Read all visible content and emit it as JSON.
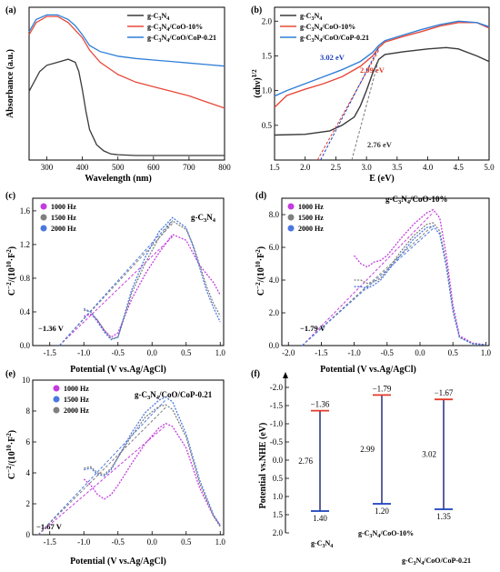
{
  "chart_data": [
    {
      "id": "a",
      "panel_label": "(a)",
      "type": "line",
      "xlabel": "Wavelength (nm)",
      "ylabel": "Absorbance (a.u.)",
      "xlim": [
        250,
        800
      ],
      "ylim": [
        0,
        1.0
      ],
      "xticks": [
        "300",
        "400",
        "500",
        "600",
        "700",
        "800"
      ],
      "legend_position": "top-right",
      "series": [
        {
          "name": "g-C3N4",
          "color": "#3a3a3a",
          "x": [
            250,
            280,
            300,
            330,
            360,
            380,
            390,
            400,
            410,
            420,
            440,
            460,
            480,
            500,
            550,
            600,
            650,
            700,
            750,
            800
          ],
          "y": [
            0.45,
            0.58,
            0.62,
            0.64,
            0.66,
            0.64,
            0.58,
            0.46,
            0.32,
            0.2,
            0.1,
            0.06,
            0.04,
            0.035,
            0.03,
            0.03,
            0.03,
            0.03,
            0.03,
            0.03
          ]
        },
        {
          "name": "g-C3N4/CoO-10%",
          "color": "#e8483a",
          "x": [
            250,
            270,
            300,
            330,
            360,
            380,
            400,
            420,
            450,
            500,
            550,
            600,
            650,
            700,
            750,
            800
          ],
          "y": [
            0.82,
            0.9,
            0.94,
            0.94,
            0.9,
            0.85,
            0.8,
            0.72,
            0.64,
            0.56,
            0.51,
            0.48,
            0.45,
            0.42,
            0.38,
            0.34
          ]
        },
        {
          "name": "g-C3N4/CoO/CoP-0.21",
          "color": "#2f7fd8",
          "x": [
            250,
            270,
            300,
            330,
            360,
            380,
            400,
            420,
            450,
            500,
            550,
            600,
            650,
            700,
            750,
            800
          ],
          "y": [
            0.84,
            0.92,
            0.95,
            0.95,
            0.92,
            0.88,
            0.82,
            0.75,
            0.71,
            0.68,
            0.665,
            0.655,
            0.645,
            0.635,
            0.625,
            0.615
          ]
        }
      ]
    },
    {
      "id": "b",
      "panel_label": "(b)",
      "type": "line",
      "xlabel": "E (eV)",
      "ylabel": "(αhν)^1/2",
      "xlim": [
        1.5,
        5.0
      ],
      "ylim": [
        0,
        2.2
      ],
      "xticks": [
        "1.5",
        "2.0",
        "2.5",
        "3.0",
        "3.5",
        "4.0",
        "4.5",
        "5.0"
      ],
      "yticks": [
        "0.5",
        "1.0",
        "1.5",
        "2.0"
      ],
      "legend_position": "top-left",
      "annotations": [
        {
          "text": "3.02 eV",
          "color": "#1a3fbf"
        },
        {
          "text": "2.99 eV",
          "color": "#e33a2a"
        },
        {
          "text": "2.76 eV",
          "color": "#333333"
        }
      ],
      "series": [
        {
          "name": "g-C3N4",
          "color": "#3a3a3a",
          "x": [
            1.5,
            2.0,
            2.4,
            2.6,
            2.8,
            2.9,
            3.0,
            3.1,
            3.2,
            3.3,
            3.6,
            4.0,
            4.3,
            4.5,
            4.8,
            5.0
          ],
          "y": [
            0.36,
            0.37,
            0.42,
            0.5,
            0.62,
            0.78,
            1.0,
            1.25,
            1.45,
            1.52,
            1.56,
            1.6,
            1.62,
            1.6,
            1.5,
            1.42
          ]
        },
        {
          "name": "g-C3N4/CoO-10%",
          "color": "#e8483a",
          "x": [
            1.5,
            1.7,
            2.0,
            2.3,
            2.6,
            2.9,
            3.1,
            3.2,
            3.3,
            3.6,
            3.9,
            4.2,
            4.5,
            4.8,
            5.0
          ],
          "y": [
            0.76,
            0.93,
            1.02,
            1.1,
            1.2,
            1.35,
            1.5,
            1.62,
            1.7,
            1.78,
            1.85,
            1.93,
            1.98,
            1.98,
            1.9
          ]
        },
        {
          "name": "g-C3N4/CoO/CoP-0.21",
          "color": "#2f7fd8",
          "x": [
            1.5,
            1.7,
            2.0,
            2.3,
            2.6,
            2.9,
            3.1,
            3.2,
            3.3,
            3.6,
            3.9,
            4.2,
            4.5,
            4.8,
            5.0
          ],
          "y": [
            0.92,
            1.0,
            1.1,
            1.2,
            1.3,
            1.42,
            1.55,
            1.65,
            1.72,
            1.8,
            1.88,
            1.95,
            2.0,
            1.98,
            1.92
          ]
        }
      ]
    },
    {
      "id": "c",
      "panel_label": "(c)",
      "type": "line",
      "title": "g-C3N4",
      "xlabel": "Potential (V vs.Ag/AgCl)",
      "ylabel": "C^-2/(10^10 F^2)",
      "xlim": [
        -1.75,
        1.05
      ],
      "ylim": [
        0,
        1.75
      ],
      "xticks": [
        "-1.5",
        "-1.0",
        "-0.5",
        "0.0",
        "0.5",
        "1.0"
      ],
      "yticks": [
        "0.0",
        "0.4",
        "0.8",
        "1.2",
        "1.6"
      ],
      "legend_position": "top-left",
      "flatband_label": "−1.36 V",
      "series": [
        {
          "name": "1000 Hz",
          "color": "#c43be0",
          "x": [
            -1.0,
            -0.9,
            -0.8,
            -0.7,
            -0.6,
            -0.5,
            -0.4,
            -0.3,
            -0.1,
            0.1,
            0.3,
            0.5,
            0.6,
            0.7,
            0.8,
            0.9,
            1.0
          ],
          "y": [
            0.35,
            0.37,
            0.3,
            0.18,
            0.1,
            0.15,
            0.35,
            0.55,
            0.85,
            1.1,
            1.32,
            1.25,
            1.1,
            0.95,
            0.85,
            0.75,
            0.6
          ]
        },
        {
          "name": "1500 Hz",
          "color": "#7f7f7f",
          "x": [
            -1.0,
            -0.9,
            -0.8,
            -0.7,
            -0.6,
            -0.5,
            -0.4,
            -0.3,
            -0.1,
            0.1,
            0.3,
            0.5,
            0.6,
            0.7,
            0.8,
            0.9,
            1.0
          ],
          "y": [
            0.42,
            0.4,
            0.3,
            0.18,
            0.08,
            0.1,
            0.35,
            0.62,
            0.98,
            1.28,
            1.48,
            1.38,
            1.2,
            0.95,
            0.7,
            0.5,
            0.35
          ]
        },
        {
          "name": "2000 Hz",
          "color": "#4a78e0",
          "x": [
            -1.0,
            -0.9,
            -0.8,
            -0.7,
            -0.6,
            -0.5,
            -0.4,
            -0.3,
            -0.1,
            0.1,
            0.3,
            0.5,
            0.6,
            0.7,
            0.8,
            0.9,
            1.0
          ],
          "y": [
            0.44,
            0.4,
            0.28,
            0.16,
            0.07,
            0.1,
            0.38,
            0.66,
            1.05,
            1.35,
            1.52,
            1.4,
            1.18,
            0.92,
            0.65,
            0.45,
            0.28
          ]
        }
      ]
    },
    {
      "id": "d",
      "panel_label": "(d)",
      "type": "line",
      "title": "g-C3N4/CoO-10%",
      "xlabel": "Potential (V vs.Ag/AgCl)",
      "ylabel": "C^-2/(10^10 F^2)",
      "xlim": [
        -2.1,
        1.05
      ],
      "ylim": [
        0,
        9
      ],
      "xticks": [
        "-2.0",
        "-1.5",
        "-1.0",
        "-0.5",
        "0.0",
        "0.5",
        "1.0"
      ],
      "yticks": [
        "0.0",
        "2.0",
        "4.0",
        "6.0",
        "8.0"
      ],
      "legend_position": "top-left",
      "flatband_label": "−1.79 V",
      "series": [
        {
          "name": "1000 Hz",
          "color": "#c43be0",
          "x": [
            -1.0,
            -0.9,
            -0.8,
            -0.7,
            -0.6,
            -0.5,
            -0.3,
            -0.1,
            0.1,
            0.2,
            0.3,
            0.4,
            0.5,
            0.6,
            0.8,
            1.0
          ],
          "y": [
            5.5,
            5.0,
            4.8,
            5.1,
            5.2,
            5.5,
            6.5,
            7.4,
            8.1,
            8.3,
            7.8,
            5.5,
            2.5,
            0.6,
            0.15,
            0.05
          ]
        },
        {
          "name": "1500 Hz",
          "color": "#7f7f7f",
          "x": [
            -1.0,
            -0.9,
            -0.8,
            -0.7,
            -0.6,
            -0.5,
            -0.3,
            -0.1,
            0.1,
            0.2,
            0.3,
            0.4,
            0.5,
            0.6,
            0.8,
            1.0
          ],
          "y": [
            4.0,
            4.0,
            3.8,
            3.9,
            4.1,
            4.6,
            5.7,
            6.7,
            7.4,
            7.5,
            7.0,
            5.0,
            2.2,
            0.5,
            0.12,
            0.05
          ]
        },
        {
          "name": "2000 Hz",
          "color": "#4a78e0",
          "x": [
            -1.0,
            -0.9,
            -0.8,
            -0.7,
            -0.6,
            -0.5,
            -0.3,
            -0.1,
            0.1,
            0.2,
            0.3,
            0.4,
            0.5,
            0.6,
            0.8,
            1.0
          ],
          "y": [
            3.6,
            3.6,
            3.5,
            3.7,
            4.0,
            4.5,
            5.5,
            6.5,
            7.2,
            7.3,
            6.8,
            4.8,
            2.1,
            0.5,
            0.1,
            0.05
          ]
        }
      ]
    },
    {
      "id": "e",
      "panel_label": "(e)",
      "type": "line",
      "title": "g-C3N4/CoO/CoP-0.21",
      "xlabel": "Potential (V vs.Ag/AgCl)",
      "ylabel": "C^-2/(10^10 F^2)",
      "xlim": [
        -1.75,
        1.05
      ],
      "ylim": [
        0,
        10
      ],
      "xticks": [
        "-1.5",
        "-1.0",
        "-0.5",
        "0.0",
        "0.5",
        "1.0"
      ],
      "yticks": [
        "0",
        "2",
        "4",
        "6",
        "8",
        "10"
      ],
      "legend_position": "top-left",
      "flatband_label": "−1.67 V",
      "series": [
        {
          "name": "1000 Hz",
          "color": "#c43be0",
          "x": [
            -1.0,
            -0.9,
            -0.8,
            -0.7,
            -0.6,
            -0.5,
            -0.3,
            -0.1,
            0.1,
            0.2,
            0.3,
            0.5,
            0.7,
            0.9,
            1.0
          ],
          "y": [
            3.6,
            3.2,
            2.6,
            2.3,
            2.6,
            3.2,
            4.6,
            5.9,
            6.9,
            7.2,
            7.0,
            5.6,
            3.0,
            1.2,
            0.6
          ]
        },
        {
          "name": "1500 Hz",
          "color": "#4a78e0",
          "x": [
            -1.0,
            -0.9,
            -0.8,
            -0.7,
            -0.6,
            -0.5,
            -0.3,
            -0.1,
            0.1,
            0.2,
            0.3,
            0.5,
            0.7,
            0.9,
            1.0
          ],
          "y": [
            4.2,
            4.3,
            3.9,
            3.8,
            4.2,
            5.0,
            6.6,
            7.9,
            8.7,
            8.9,
            8.6,
            6.5,
            3.5,
            1.3,
            0.6
          ]
        },
        {
          "name": "2000 Hz",
          "color": "#7f7f7f",
          "x": [
            -1.0,
            -0.9,
            -0.8,
            -0.7,
            -0.6,
            -0.5,
            -0.3,
            -0.1,
            0.1,
            0.2,
            0.3,
            0.5,
            0.7,
            0.9,
            1.0
          ],
          "y": [
            4.3,
            4.4,
            4.0,
            3.9,
            4.3,
            5.0,
            6.4,
            7.6,
            8.3,
            8.4,
            8.1,
            6.3,
            3.3,
            1.2,
            0.5
          ]
        }
      ]
    },
    {
      "id": "f",
      "panel_label": "(f)",
      "type": "bar",
      "ylabel": "Potential vs.NHE (eV)",
      "ylim": [
        -2.2,
        2.0
      ],
      "yticks": [
        "-2.0",
        "-1.5",
        "-1.0",
        "-0.5",
        "0.0",
        "0.5",
        "1.0",
        "1.5",
        "2.0"
      ],
      "categories": [
        "g-C3N4",
        "g-C3N4/CoO-10%",
        "g-C3N4/CoO/CoP-0.21"
      ],
      "cb_values": [
        -1.36,
        -1.79,
        -1.67
      ],
      "vb_values": [
        1.4,
        1.2,
        1.35
      ],
      "gap_values": [
        2.76,
        2.99,
        3.02
      ],
      "cb_labels": [
        "−1.36",
        "−1.79",
        "−1.67"
      ],
      "vb_labels": [
        "1.40",
        "1.20",
        "1.35"
      ],
      "gap_labels": [
        "2.76",
        "2.99",
        "3.02"
      ]
    }
  ]
}
